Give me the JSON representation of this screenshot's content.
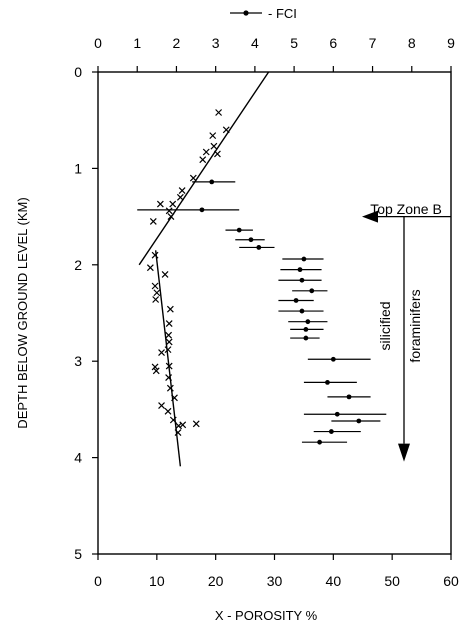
{
  "chart_data": {
    "type": "scatter",
    "legend": {
      "label": "- FCI",
      "position": "top"
    },
    "xlabel": "X - POROSITY %",
    "ylabel": "DEPTH BELOW GROUND LEVEL (KM)",
    "xlim_bottom": [
      0,
      60
    ],
    "xlim_top": [
      0,
      9
    ],
    "ylim": [
      0,
      5
    ],
    "y_inverted": true,
    "x_ticks_bottom": [
      "0",
      "10",
      "20",
      "30",
      "40",
      "50",
      "60"
    ],
    "x_ticks_top": [
      "0",
      "1",
      "2",
      "3",
      "4",
      "5",
      "6",
      "7",
      "8",
      "9"
    ],
    "y_ticks": [
      "0",
      "1",
      "2",
      "3",
      "4",
      "5"
    ],
    "grid": false,
    "series": [
      {
        "marker": "x",
        "axis": "bottom",
        "points": [
          {
            "x": 20.5,
            "y": 0.42
          },
          {
            "x": 21.8,
            "y": 0.6
          },
          {
            "x": 19.5,
            "y": 0.66
          },
          {
            "x": 19.7,
            "y": 0.77
          },
          {
            "x": 20.3,
            "y": 0.85
          },
          {
            "x": 18.4,
            "y": 0.83
          },
          {
            "x": 17.8,
            "y": 0.91
          },
          {
            "x": 16.2,
            "y": 1.1
          },
          {
            "x": 14.3,
            "y": 1.23
          },
          {
            "x": 14.0,
            "y": 1.3
          },
          {
            "x": 12.7,
            "y": 1.37
          },
          {
            "x": 10.6,
            "y": 1.37
          },
          {
            "x": 12.1,
            "y": 1.44
          },
          {
            "x": 12.4,
            "y": 1.5
          },
          {
            "x": 9.4,
            "y": 1.55
          },
          {
            "x": 9.7,
            "y": 1.9
          },
          {
            "x": 8.9,
            "y": 2.03
          },
          {
            "x": 11.4,
            "y": 2.1
          },
          {
            "x": 9.7,
            "y": 2.22
          },
          {
            "x": 10.0,
            "y": 2.29
          },
          {
            "x": 9.8,
            "y": 2.36
          },
          {
            "x": 12.3,
            "y": 2.46
          },
          {
            "x": 12.1,
            "y": 2.61
          },
          {
            "x": 12.0,
            "y": 2.73
          },
          {
            "x": 12.1,
            "y": 2.8
          },
          {
            "x": 11.9,
            "y": 2.88
          },
          {
            "x": 10.8,
            "y": 2.91
          },
          {
            "x": 9.7,
            "y": 3.06
          },
          {
            "x": 9.9,
            "y": 3.1
          },
          {
            "x": 12.1,
            "y": 3.05
          },
          {
            "x": 12.0,
            "y": 3.17
          },
          {
            "x": 12.3,
            "y": 3.28
          },
          {
            "x": 13.0,
            "y": 3.38
          },
          {
            "x": 10.8,
            "y": 3.46
          },
          {
            "x": 11.9,
            "y": 3.52
          },
          {
            "x": 12.8,
            "y": 3.61
          },
          {
            "x": 13.7,
            "y": 3.67
          },
          {
            "x": 14.4,
            "y": 3.66
          },
          {
            "x": 16.7,
            "y": 3.65
          },
          {
            "x": 13.6,
            "y": 3.74
          }
        ]
      },
      {
        "name": "FCI",
        "marker": "dot-with-range",
        "axis": "top",
        "points": [
          {
            "x": 2.9,
            "y": 1.14,
            "xmin": 2.4,
            "xmax": 3.5
          },
          {
            "x": 2.65,
            "y": 1.43,
            "xmin": 1.0,
            "xmax": 3.6
          },
          {
            "x": 3.6,
            "y": 1.64,
            "xmin": 3.25,
            "xmax": 3.95
          },
          {
            "x": 3.9,
            "y": 1.74,
            "xmin": 3.5,
            "xmax": 4.25
          },
          {
            "x": 4.1,
            "y": 1.82,
            "xmin": 3.6,
            "xmax": 4.5
          },
          {
            "x": 5.25,
            "y": 1.94,
            "xmin": 4.7,
            "xmax": 5.75
          },
          {
            "x": 5.15,
            "y": 2.05,
            "xmin": 4.65,
            "xmax": 5.7
          },
          {
            "x": 5.2,
            "y": 2.16,
            "xmin": 4.6,
            "xmax": 5.7
          },
          {
            "x": 5.45,
            "y": 2.27,
            "xmin": 4.95,
            "xmax": 5.85
          },
          {
            "x": 5.05,
            "y": 2.37,
            "xmin": 4.6,
            "xmax": 5.5
          },
          {
            "x": 5.2,
            "y": 2.48,
            "xmin": 4.6,
            "xmax": 5.75
          },
          {
            "x": 5.35,
            "y": 2.59,
            "xmin": 4.85,
            "xmax": 5.85
          },
          {
            "x": 5.3,
            "y": 2.67,
            "xmin": 4.9,
            "xmax": 5.75
          },
          {
            "x": 5.3,
            "y": 2.76,
            "xmin": 4.9,
            "xmax": 5.65
          },
          {
            "x": 6.0,
            "y": 2.98,
            "xmin": 5.35,
            "xmax": 6.95
          },
          {
            "x": 5.85,
            "y": 3.22,
            "xmin": 5.25,
            "xmax": 6.6
          },
          {
            "x": 6.4,
            "y": 3.37,
            "xmin": 5.85,
            "xmax": 6.95
          },
          {
            "x": 6.1,
            "y": 3.55,
            "xmin": 5.25,
            "xmax": 7.35
          },
          {
            "x": 6.65,
            "y": 3.62,
            "xmin": 5.95,
            "xmax": 7.2
          },
          {
            "x": 5.95,
            "y": 3.73,
            "xmin": 5.5,
            "xmax": 6.7
          },
          {
            "x": 5.65,
            "y": 3.84,
            "xmin": 5.2,
            "xmax": 6.35
          }
        ]
      }
    ],
    "trend_lines": [
      {
        "axis": "bottom",
        "points": [
          {
            "x": 29.0,
            "y": 0.0
          },
          {
            "x": 7.0,
            "y": 2.0
          }
        ]
      },
      {
        "axis": "bottom",
        "points": [
          {
            "x": 9.8,
            "y": 1.85
          },
          {
            "x": 14.0,
            "y": 4.09
          }
        ]
      }
    ],
    "annotations": [
      {
        "text": "Top Zone B",
        "y": 1.5
      },
      {
        "text": "silicified",
        "y_range": [
          1.5,
          4.0
        ]
      },
      {
        "text": "foraminifers",
        "y_range": [
          1.5,
          4.0
        ]
      }
    ]
  }
}
